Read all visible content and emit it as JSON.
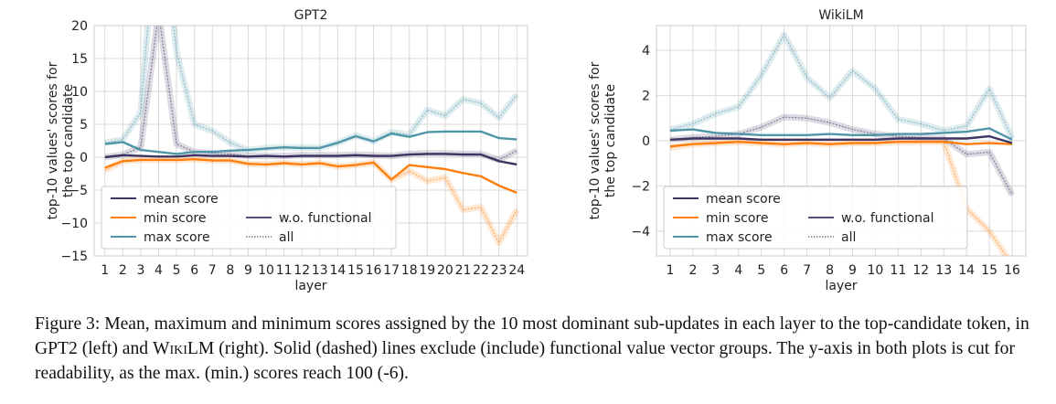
{
  "legend": {
    "mean": "mean score",
    "min": "min score",
    "max": "max score",
    "without": "w.o. functional",
    "all": "all"
  },
  "colors": {
    "mean": "#3e3461",
    "min": "#ff7f0e",
    "max": "#4f97a8",
    "grid": "#d9d9d9"
  },
  "caption": {
    "lead": "Figure 3: Mean, maximum and minimum scores assigned by the 10 most dominant sub-updates in each layer to the top-candidate token, in GPT2 (left) and ",
    "wiki": "WikiLM",
    "tail": " (right). Solid (dashed) lines exclude (include) functional value vector groups. The y-axis in both plots is cut for readability, as the max. (min.) scores reach 100 (-6)."
  },
  "chart_data": [
    {
      "type": "line",
      "title": "GPT2",
      "xlabel": "layer",
      "ylabel": "top-10 values' scores for the top candidate",
      "x": [
        1,
        2,
        3,
        4,
        5,
        6,
        7,
        8,
        9,
        10,
        11,
        12,
        13,
        14,
        15,
        16,
        17,
        18,
        19,
        20,
        21,
        22,
        23,
        24
      ],
      "yticks": [
        -15,
        -10,
        -5,
        0,
        5,
        10,
        15,
        20
      ],
      "ylim": [
        -15,
        20
      ],
      "grid": true,
      "legend_position": "lower-left",
      "series": [
        {
          "name": "mean score",
          "variant": "w.o. functional",
          "values": [
            0,
            0.3,
            0.2,
            0.1,
            0.1,
            0.3,
            0.2,
            0.2,
            0.1,
            0.2,
            0.1,
            0.2,
            0.2,
            0.2,
            0.3,
            0.2,
            0.2,
            0.4,
            0.5,
            0.5,
            0.4,
            0.4,
            -0.6,
            -1.1
          ]
        },
        {
          "name": "min score",
          "variant": "w.o. functional",
          "values": [
            -1.6,
            -0.6,
            -0.4,
            -0.4,
            -0.4,
            -0.3,
            -0.5,
            -0.5,
            -1,
            -1.1,
            -0.9,
            -1.1,
            -0.9,
            -1.4,
            -1.2,
            -0.8,
            -3.4,
            -1.2,
            -1.5,
            -1.8,
            -2.4,
            -2.9,
            -4.3,
            -5.4
          ]
        },
        {
          "name": "max score",
          "variant": "w.o. functional",
          "values": [
            2,
            2.3,
            1.1,
            0.8,
            0.5,
            0.8,
            0.8,
            1,
            1.1,
            1.3,
            1.5,
            1.4,
            1.4,
            2.2,
            3.2,
            2.4,
            3.6,
            3.1,
            3.8,
            3.9,
            3.9,
            3.9,
            2.9,
            2.7
          ]
        },
        {
          "name": "mean score",
          "variant": "all",
          "values": [
            0,
            0.4,
            1.5,
            22,
            2,
            0.8,
            0.6,
            0.5,
            0.2,
            0.2,
            0.2,
            0.3,
            0.3,
            0.3,
            0.4,
            0.3,
            0.2,
            0.5,
            0.6,
            0.6,
            0.5,
            0.5,
            -0.4,
            1
          ]
        },
        {
          "name": "min score",
          "variant": "all",
          "values": [
            -2,
            -0.6,
            -0.4,
            -0.4,
            -0.4,
            -0.3,
            -0.5,
            -0.5,
            -1,
            -1.1,
            -0.9,
            -1.1,
            -0.9,
            -1.4,
            -1.2,
            -0.8,
            -3.4,
            -2.1,
            -3.6,
            -3.1,
            -8,
            -7.6,
            -13,
            -8
          ]
        },
        {
          "name": "max score",
          "variant": "all",
          "values": [
            2.2,
            2.7,
            6.8,
            40,
            16,
            5,
            4,
            2.2,
            1.1,
            1.4,
            1.5,
            1.5,
            1.4,
            2.2,
            3.3,
            2.4,
            3.8,
            3.4,
            7.2,
            6.3,
            8.8,
            8.2,
            6,
            9.5
          ]
        }
      ]
    },
    {
      "type": "line",
      "title": "WikiLM",
      "xlabel": "layer",
      "ylabel": "top-10 values' scores for the top candidate",
      "x": [
        1,
        2,
        3,
        4,
        5,
        6,
        7,
        8,
        9,
        10,
        11,
        12,
        13,
        14,
        15,
        16
      ],
      "yticks": [
        -4,
        -2,
        0,
        2,
        4
      ],
      "ylim": [
        -5.1,
        5.1
      ],
      "grid": true,
      "legend_position": "lower-left",
      "series": [
        {
          "name": "mean score",
          "variant": "w.o. functional",
          "values": [
            0.05,
            0.1,
            0.1,
            0.1,
            0.05,
            0.05,
            0.05,
            0.05,
            0.05,
            0.05,
            0.1,
            0.1,
            0.1,
            0.1,
            0.2,
            -0.1
          ]
        },
        {
          "name": "min score",
          "variant": "w.o. functional",
          "values": [
            -0.25,
            -0.15,
            -0.1,
            -0.05,
            -0.1,
            -0.15,
            -0.1,
            -0.15,
            -0.1,
            -0.1,
            -0.05,
            -0.05,
            -0.05,
            -0.15,
            -0.1,
            -0.15
          ]
        },
        {
          "name": "max score",
          "variant": "w.o. functional",
          "values": [
            0.45,
            0.5,
            0.35,
            0.3,
            0.25,
            0.25,
            0.25,
            0.3,
            0.25,
            0.25,
            0.3,
            0.3,
            0.35,
            0.4,
            0.55,
            0.05
          ]
        },
        {
          "name": "mean score",
          "variant": "all",
          "values": [
            0.05,
            0.15,
            0.2,
            0.3,
            0.6,
            1.05,
            1,
            0.8,
            0.5,
            0.3,
            0.2,
            0.15,
            0.1,
            -0.6,
            -0.5,
            -2.4
          ]
        },
        {
          "name": "min score",
          "variant": "all",
          "values": [
            -0.3,
            -0.15,
            -0.1,
            -0.05,
            -0.1,
            -0.15,
            -0.1,
            -0.15,
            -0.1,
            -0.1,
            -0.05,
            -0.05,
            -0.05,
            -3,
            -4,
            -5.5
          ]
        },
        {
          "name": "max score",
          "variant": "all",
          "values": [
            0.5,
            0.75,
            1.2,
            1.5,
            2.9,
            4.7,
            2.8,
            1.9,
            3.1,
            2.3,
            0.95,
            0.75,
            0.45,
            0.65,
            2.3,
            0.1
          ]
        }
      ]
    }
  ]
}
